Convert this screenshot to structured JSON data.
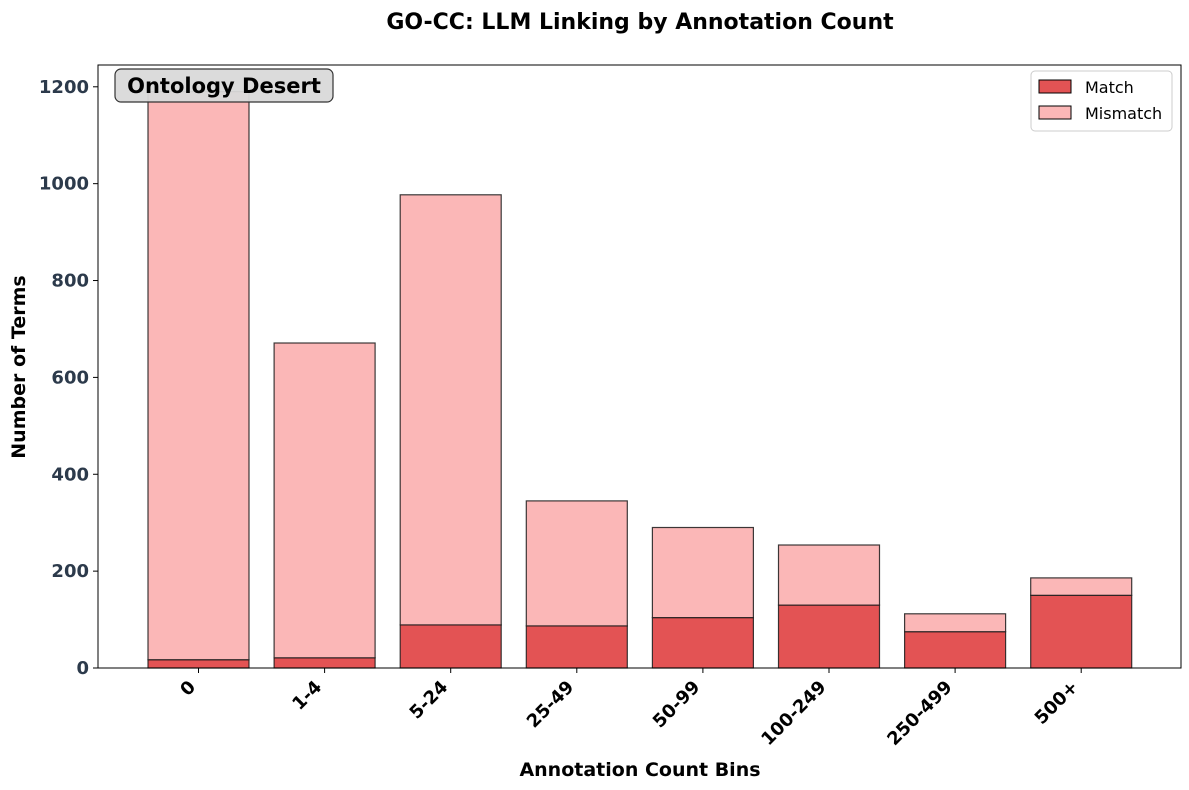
{
  "chart_data": {
    "type": "bar",
    "stacked": true,
    "title": "GO-CC: LLM Linking by Annotation Count",
    "xlabel": "Annotation Count Bins",
    "ylabel": "Number of Terms",
    "categories": [
      "0",
      "1-4",
      "5-24",
      "25-49",
      "50-99",
      "100-249",
      "250-499",
      "500+"
    ],
    "series": [
      {
        "name": "Match",
        "color": "#e35354",
        "values": [
          17,
          21,
          89,
          87,
          104,
          130,
          75,
          150
        ]
      },
      {
        "name": "Mismatch",
        "color": "#fbb7b7",
        "values": [
          1173,
          650,
          888,
          258,
          186,
          124,
          37,
          36
        ]
      }
    ],
    "ylim": [
      0,
      1245
    ],
    "yticks": [
      0,
      200,
      400,
      600,
      800,
      1000,
      1200
    ],
    "legend_position": "top-right",
    "grid": false,
    "annotation": "Ontology Desert"
  }
}
